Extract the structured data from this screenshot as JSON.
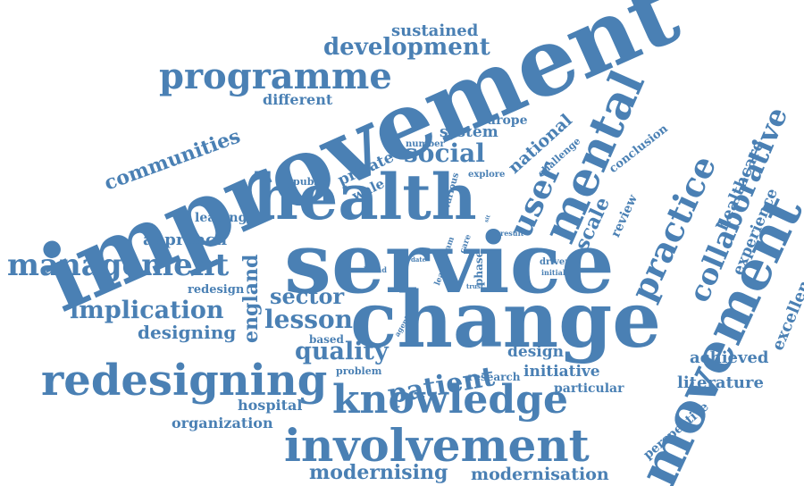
{
  "cloud": {
    "color": "#4A80B4",
    "words": {
      "improvement": "improvement",
      "service": "service",
      "change": "change",
      "health": "health",
      "involvement": "involvement",
      "redesigning": "redesigning",
      "knowledge": "knowledge",
      "management": "management",
      "programme": "programme",
      "movement": "movement",
      "mental": "mental",
      "practice": "practice",
      "patient": "patient",
      "collaborative": "collaborative",
      "development": "development",
      "implication": "implication",
      "lesson": "lesson",
      "quality": "quality",
      "sector": "sector",
      "user": "user",
      "social": "social",
      "communities": "communities",
      "modernising": "modernising",
      "modernisation": "modernisation",
      "sustained": "sustained",
      "different": "different",
      "europe": "europe",
      "system": "system",
      "national": "national",
      "number": "number",
      "challenge": "challenge",
      "private": "private",
      "public": "public",
      "wale": "wale",
      "explore": "explore",
      "various": "various",
      "conclusion": "conclusion",
      "healthcare": "healthcare",
      "scale": "scale",
      "review": "review",
      "leading": "leading",
      "approach": "approach",
      "experience": "experience",
      "excellence": "excellence",
      "england": "england",
      "redesign": "redesign",
      "designing": "designing",
      "based": "based",
      "design": "design",
      "problem": "problem",
      "research": "research",
      "initiative": "initiative",
      "particular": "particular",
      "achieved": "achieved",
      "literature": "literature",
      "hospital": "hospital",
      "organization": "organization",
      "perspective": "perspective",
      "agent": "agent",
      "broad": "broad",
      "date": "date",
      "learn": "learn",
      "team": "team",
      "phase": "phase",
      "care": "care",
      "trust": "trust",
      "driver": "driver",
      "initial": "initial",
      "result": "result",
      "sit": "sit"
    }
  }
}
